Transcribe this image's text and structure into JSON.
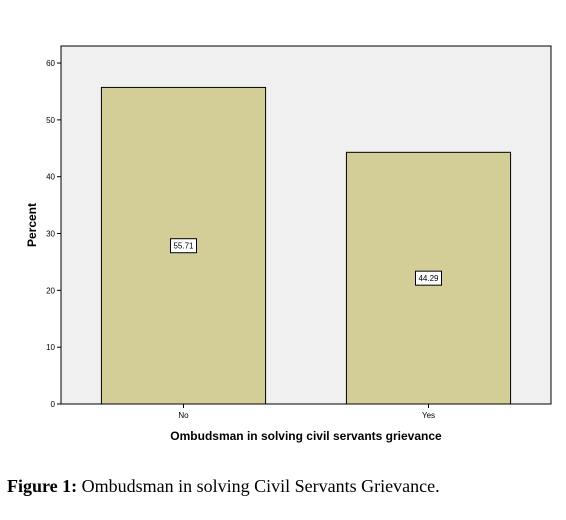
{
  "chart_data": {
    "type": "bar",
    "categories": [
      "No",
      "Yes"
    ],
    "values": [
      55.71,
      44.29
    ],
    "data_labels": [
      "55.71",
      "44.29"
    ],
    "title": "",
    "xlabel": "Ombudsman in solving civil servants grievance",
    "ylabel": "Percent",
    "ylim": [
      0,
      63
    ],
    "yticks": [
      0,
      10,
      20,
      30,
      40,
      50,
      60
    ],
    "grid": false,
    "legend": "none",
    "colors": {
      "plot_background": "#f0f0f0",
      "bar_fill": "#d3ce97",
      "bar_stroke": "#000000",
      "axis": "#000000"
    }
  },
  "caption": {
    "label": "Figure 1:",
    "text": " Ombudsman in solving Civil Servants Grievance."
  }
}
